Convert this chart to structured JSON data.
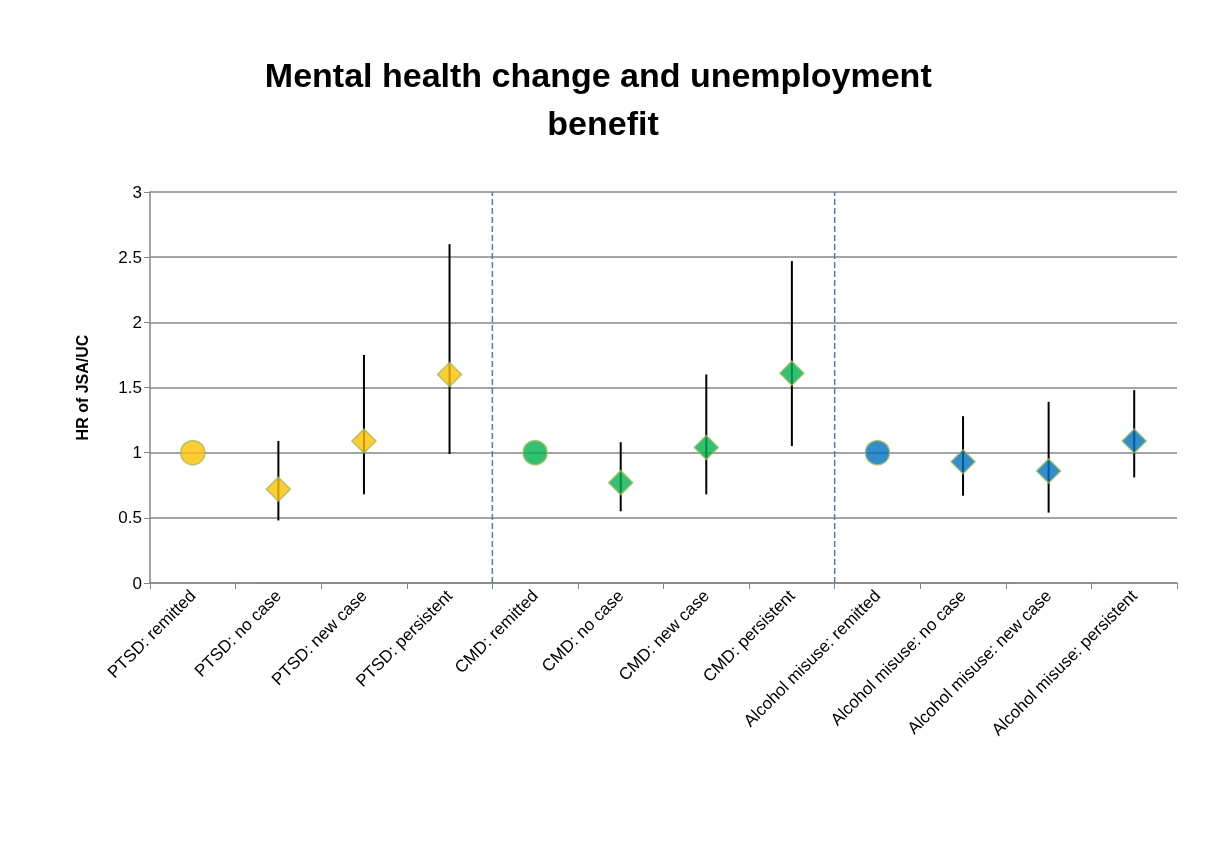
{
  "chart_data": {
    "type": "scatter",
    "title": "Mental health change and unemployment benefit",
    "ylabel": "HR of JSA/UC",
    "categories": [
      "PTSD: remitted",
      "PTSD: no case",
      "PTSD: new case",
      "PTSD: persistent",
      "CMD: remitted",
      "CMD: no case",
      "CMD: new case",
      "CMD: persistent",
      "Alcohol misuse: remitted",
      "Alcohol misuse: no case",
      "Alcohol misuse: new case",
      "Alcohol misuse: persistent"
    ],
    "series": [
      {
        "color": "#ffc000",
        "marker": "circle",
        "values": [
          1,
          null,
          null,
          null,
          null,
          null,
          null,
          null,
          null,
          null,
          null,
          null
        ]
      },
      {
        "color": "#ffc000",
        "marker": "diamond",
        "values": [
          null,
          0.72,
          1.09,
          1.6,
          null,
          null,
          null,
          null,
          null,
          null,
          null,
          null
        ],
        "errors": [
          null,
          [
            0.48,
            1.09
          ],
          [
            0.68,
            1.75
          ],
          [
            0.99,
            2.6
          ],
          null,
          null,
          null,
          null,
          null,
          null,
          null,
          null
        ]
      },
      {
        "color": "#00b050",
        "marker": "circle",
        "values": [
          null,
          null,
          null,
          null,
          1,
          null,
          null,
          null,
          null,
          null,
          null,
          null
        ]
      },
      {
        "color": "#00b050",
        "marker": "diamond",
        "values": [
          null,
          null,
          null,
          null,
          null,
          0.77,
          1.04,
          1.61,
          null,
          null,
          null,
          null
        ],
        "errors": [
          null,
          null,
          null,
          null,
          null,
          [
            0.55,
            1.08
          ],
          [
            0.68,
            1.6
          ],
          [
            1.05,
            2.47
          ],
          null,
          null,
          null,
          null
        ]
      },
      {
        "color": "#0070c0",
        "marker": "circle",
        "values": [
          null,
          null,
          null,
          null,
          null,
          null,
          null,
          null,
          1,
          null,
          null,
          null
        ]
      },
      {
        "color": "#0070c0",
        "marker": "diamond",
        "values": [
          null,
          null,
          null,
          null,
          null,
          null,
          null,
          null,
          null,
          0.93,
          0.86,
          1.09
        ],
        "errors": [
          null,
          null,
          null,
          null,
          null,
          null,
          null,
          null,
          null,
          [
            0.67,
            1.28
          ],
          [
            0.54,
            1.39
          ],
          [
            0.81,
            1.48
          ]
        ]
      }
    ],
    "ylim": [
      0,
      3
    ],
    "yticks": [
      0,
      0.5,
      1,
      1.5,
      2,
      2.5,
      3
    ],
    "grid": "y"
  }
}
